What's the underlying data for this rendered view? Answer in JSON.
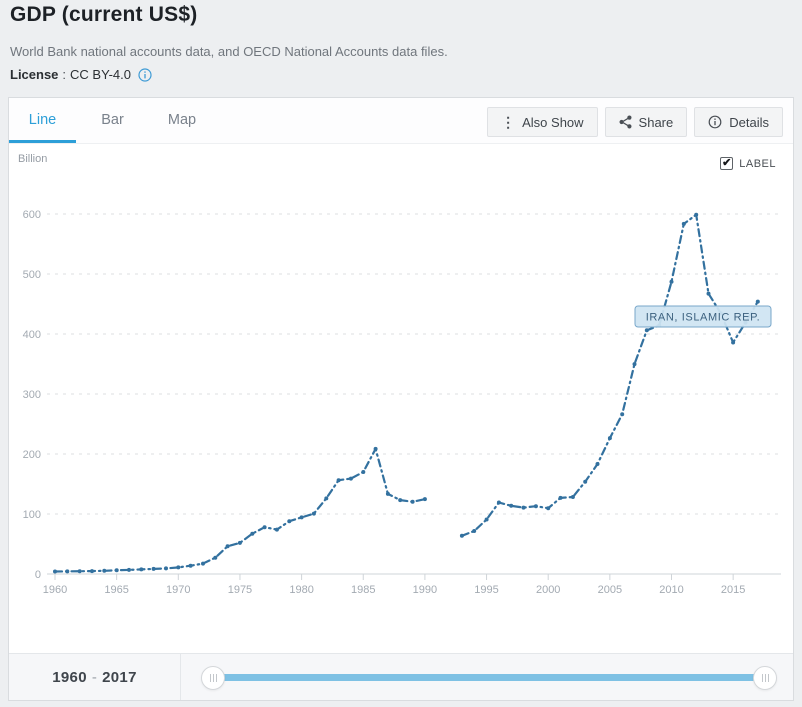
{
  "header": {
    "title": "GDP (current US$)",
    "subtitle": "World Bank national accounts data, and OECD National Accounts data files.",
    "license_label": "License",
    "license_sep": ":",
    "license_value": "CC BY-4.0"
  },
  "tabs": [
    {
      "label": "Line",
      "active": true
    },
    {
      "label": "Bar",
      "active": false
    },
    {
      "label": "Map",
      "active": false
    }
  ],
  "toolbar": {
    "also_show_label": "Also Show",
    "share_label": "Share",
    "details_label": "Details"
  },
  "chart_header": {
    "unit_label": "Billion",
    "label_checkbox_text": "LABEL",
    "label_checkbox_checked": true,
    "checkmark": "✔"
  },
  "series_label": "IRAN, ISLAMIC REP.",
  "footer": {
    "range_start": "1960",
    "range_sep": "-",
    "range_end": "2017"
  },
  "colors": {
    "accent_tab": "#2d9fd8",
    "line": "#33719f",
    "grid": "#dcdfe2",
    "axis_text": "#a3aab2",
    "label_box_bg": "#cfe4f2",
    "label_box_border": "#78a7ca",
    "label_box_text": "#3b607e",
    "slider_track": "#7ec1e4",
    "info_icon": "#3e9bd5"
  },
  "chart_data": {
    "type": "line",
    "title": "GDP (current US$)",
    "ylabel": "Billion",
    "x_range": [
      1960,
      2017
    ],
    "series": [
      {
        "name": "IRAN, ISLAMIC REP.",
        "values": [
          4.2,
          4.4,
          4.7,
          4.9,
          5.4,
          6.2,
          6.8,
          7.6,
          8.5,
          9.4,
          11.0,
          13.8,
          17.3,
          27.1,
          46.3,
          51.8,
          67.2,
          78.0,
          74.0,
          88.0,
          94.4,
          100.7,
          126.0,
          156.4,
          159.0,
          170.0,
          208.5,
          133.5,
          123.1,
          120.4,
          124.8,
          null,
          null,
          63.7,
          71.6,
          90.8,
          119.1,
          113.6,
          110.6,
          113.0,
          109.6,
          126.9,
          128.4,
          153.9,
          183.3,
          226.5,
          266.3,
          349.9,
          406.1,
          414.1,
          487.1,
          583.5,
          598.9,
          467.4,
          434.5,
          385.9,
          419.0,
          454.0
        ]
      }
    ],
    "missing_years": [
      1991,
      1992
    ],
    "x_ticks": [
      1960,
      1965,
      1970,
      1975,
      1980,
      1985,
      1990,
      1995,
      2000,
      2005,
      2010,
      2015
    ],
    "y_ticks": [
      0,
      100,
      200,
      300,
      400,
      500,
      600
    ],
    "ylim": [
      0,
      620
    ],
    "grid": "horizontal-dashed",
    "line_style": "dash-dot",
    "legend_position": "inline-label"
  }
}
